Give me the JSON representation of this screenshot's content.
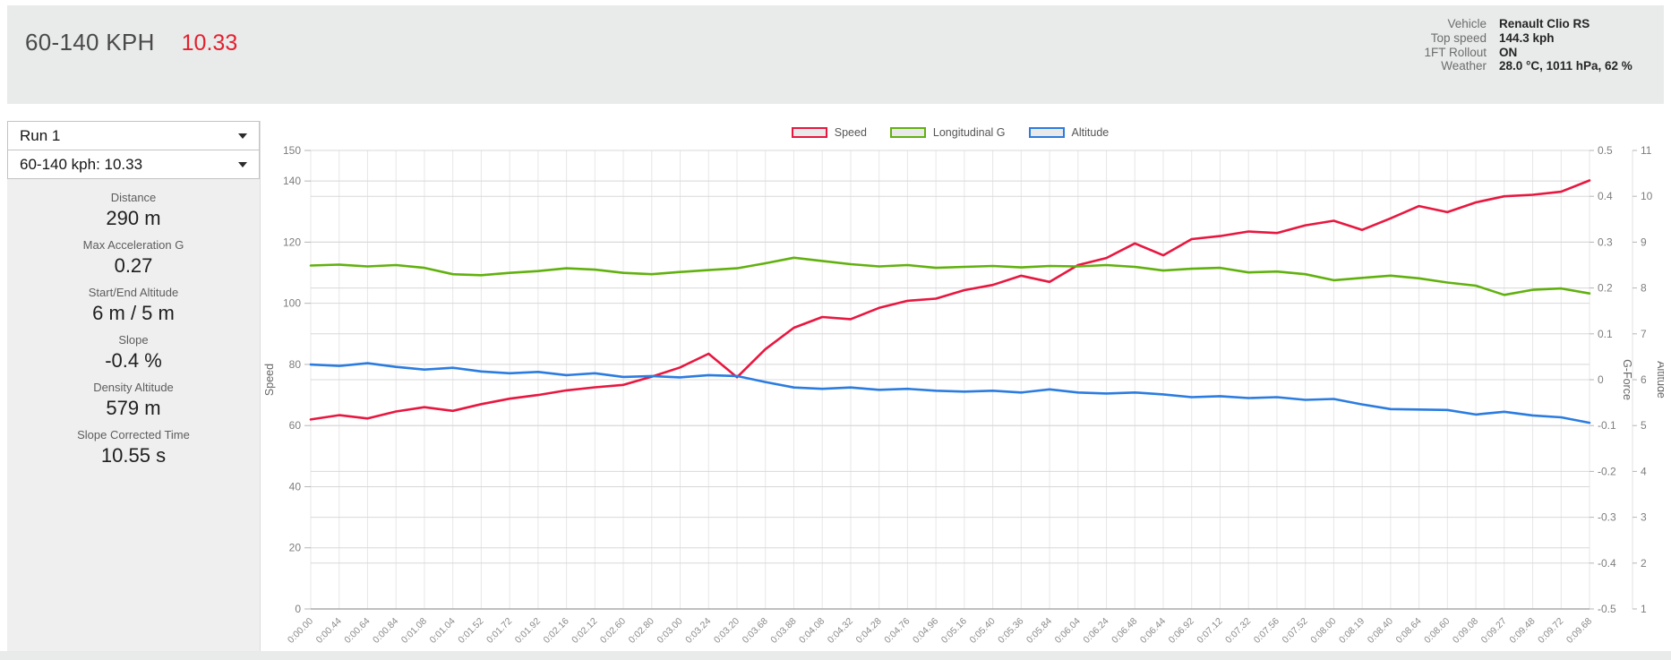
{
  "header": {
    "title": "60-140 KPH",
    "result": "10.33",
    "result_color": "#e4202e",
    "info": [
      {
        "label": "Vehicle",
        "value": "Renault Clio RS"
      },
      {
        "label": "Top speed",
        "value": "144.3 kph"
      },
      {
        "label": "1FT Rollout",
        "value": "ON"
      },
      {
        "label": "Weather",
        "value": "28.0 °C, 1011 hPa, 62 %"
      }
    ]
  },
  "sidebar": {
    "run_select": "Run 1",
    "result_select": "60-140 kph: 10.33",
    "stats": [
      {
        "label": "Distance",
        "value": "290 m"
      },
      {
        "label": "Max Acceleration G",
        "value": "0.27"
      },
      {
        "label": "Start/End Altitude",
        "value": "6 m / 5 m"
      },
      {
        "label": "Slope",
        "value": "-0.4 %"
      },
      {
        "label": "Density Altitude",
        "value": "579 m"
      },
      {
        "label": "Slope Corrected Time",
        "value": "10.55 s"
      }
    ]
  },
  "chart_data": {
    "type": "line",
    "legend_position": "top-center",
    "grid": true,
    "legend": [
      {
        "name": "Speed",
        "color": "#e8173f"
      },
      {
        "name": "Longitudinal G",
        "color": "#61b10e"
      },
      {
        "name": "Altitude",
        "color": "#2b7ce0"
      }
    ],
    "x_labels": [
      "0:00.00",
      "0:00.44",
      "0:00.64",
      "0:00.84",
      "0:01.08",
      "0:01.04",
      "0:01.52",
      "0:01.72",
      "0:01.92",
      "0:02.16",
      "0:02.12",
      "0:02.60",
      "0:02.80",
      "0:03.00",
      "0:03.24",
      "0:03.20",
      "0:03.68",
      "0:03.88",
      "0:04.08",
      "0:04.32",
      "0:04.28",
      "0:04.76",
      "0:04.96",
      "0:05.16",
      "0:05.40",
      "0:05.36",
      "0:05.84",
      "0:06.04",
      "0:06.24",
      "0:06.48",
      "0:06.44",
      "0:06.92",
      "0:07.12",
      "0:07.32",
      "0:07.56",
      "0:07.52",
      "0:08.00",
      "0:08.19",
      "0:08.40",
      "0:08.64",
      "0:08.60",
      "0:09.08",
      "0:09.27",
      "0:09.48",
      "0:09.72",
      "0:09.68"
    ],
    "axes": {
      "speed": {
        "title": "Speed",
        "min": 0,
        "max": 150,
        "ticks": [
          0,
          20,
          40,
          60,
          80,
          100,
          120,
          140,
          150
        ],
        "side": "left"
      },
      "g_force": {
        "title": "G-Force",
        "min": -0.5,
        "max": 0.5,
        "tick_step": 0.1,
        "side": "right"
      },
      "altitude": {
        "title": "Altitude",
        "min": 1,
        "max": 11,
        "tick_step": 1,
        "side": "right-outer"
      }
    },
    "series": [
      {
        "name": "Speed",
        "axis": "speed",
        "color": "#e8173f",
        "values": [
          62.0,
          63.4,
          62.3,
          64.6,
          66.0,
          64.8,
          67.0,
          68.8,
          70.0,
          71.5,
          72.5,
          73.3,
          76.0,
          79.0,
          83.5,
          75.8,
          85.0,
          92.0,
          95.5,
          94.8,
          98.5,
          100.8,
          101.5,
          104.3,
          106.0,
          109.0,
          107.0,
          112.5,
          114.8,
          119.6,
          115.7,
          121.0,
          122.0,
          123.5,
          123.0,
          125.5,
          127.0,
          124.0,
          127.8,
          131.8,
          129.8,
          133.0,
          135.0,
          135.5,
          136.5,
          140.2
        ]
      },
      {
        "name": "Longitudinal G",
        "axis": "g_force",
        "color": "#61b10e",
        "values": [
          0.249,
          0.251,
          0.247,
          0.25,
          0.244,
          0.23,
          0.228,
          0.233,
          0.237,
          0.243,
          0.24,
          0.233,
          0.23,
          0.235,
          0.239,
          0.243,
          0.254,
          0.266,
          0.259,
          0.252,
          0.247,
          0.25,
          0.244,
          0.246,
          0.248,
          0.245,
          0.248,
          0.247,
          0.25,
          0.246,
          0.238,
          0.242,
          0.244,
          0.234,
          0.236,
          0.23,
          0.217,
          0.222,
          0.227,
          0.221,
          0.212,
          0.205,
          0.185,
          0.196,
          0.199,
          0.188
        ]
      },
      {
        "name": "Altitude",
        "axis": "altitude",
        "color": "#2b7ce0",
        "values": [
          6.33,
          6.3,
          6.36,
          6.28,
          6.22,
          6.26,
          6.18,
          6.14,
          6.17,
          6.1,
          6.14,
          6.06,
          6.08,
          6.05,
          6.1,
          6.08,
          5.95,
          5.83,
          5.8,
          5.83,
          5.78,
          5.8,
          5.76,
          5.74,
          5.76,
          5.72,
          5.79,
          5.72,
          5.7,
          5.72,
          5.68,
          5.62,
          5.64,
          5.6,
          5.62,
          5.56,
          5.58,
          5.46,
          5.36,
          5.35,
          5.34,
          5.24,
          5.3,
          5.22,
          5.18,
          5.06
        ]
      }
    ]
  }
}
